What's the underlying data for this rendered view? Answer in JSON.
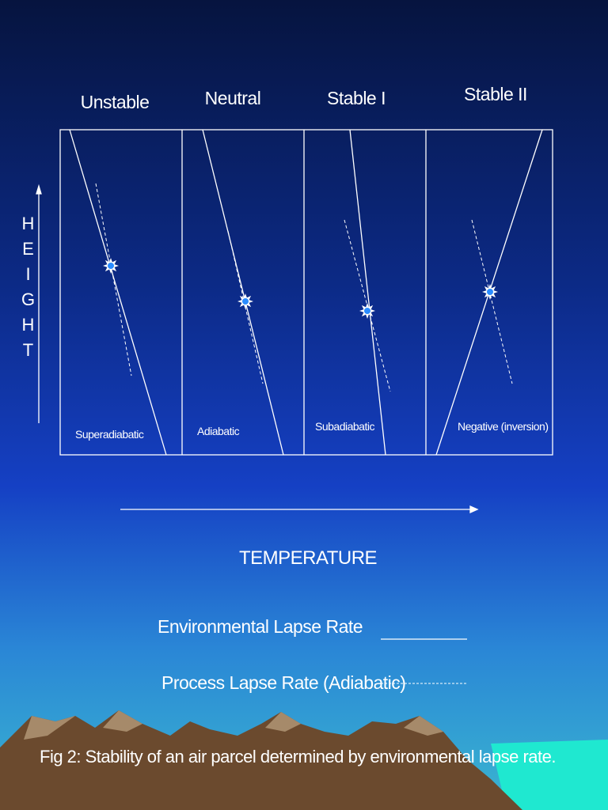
{
  "panels": [
    {
      "title": "Unstable",
      "label": "Superadiabatic"
    },
    {
      "title": "Neutral",
      "label": "Adiabatic"
    },
    {
      "title": "Stable I",
      "label": "Subadiabatic"
    },
    {
      "title": "Stable II",
      "label": "Negative (inversion)"
    }
  ],
  "y_axis_label": "HEIGHT",
  "x_axis_label": "TEMPERATURE",
  "legend": [
    "Environmental Lapse Rate",
    "Process Lapse Rate (Adiabatic)"
  ],
  "caption": "Fig 2: Stability of an air parcel determined by environmental lapse rate."
}
